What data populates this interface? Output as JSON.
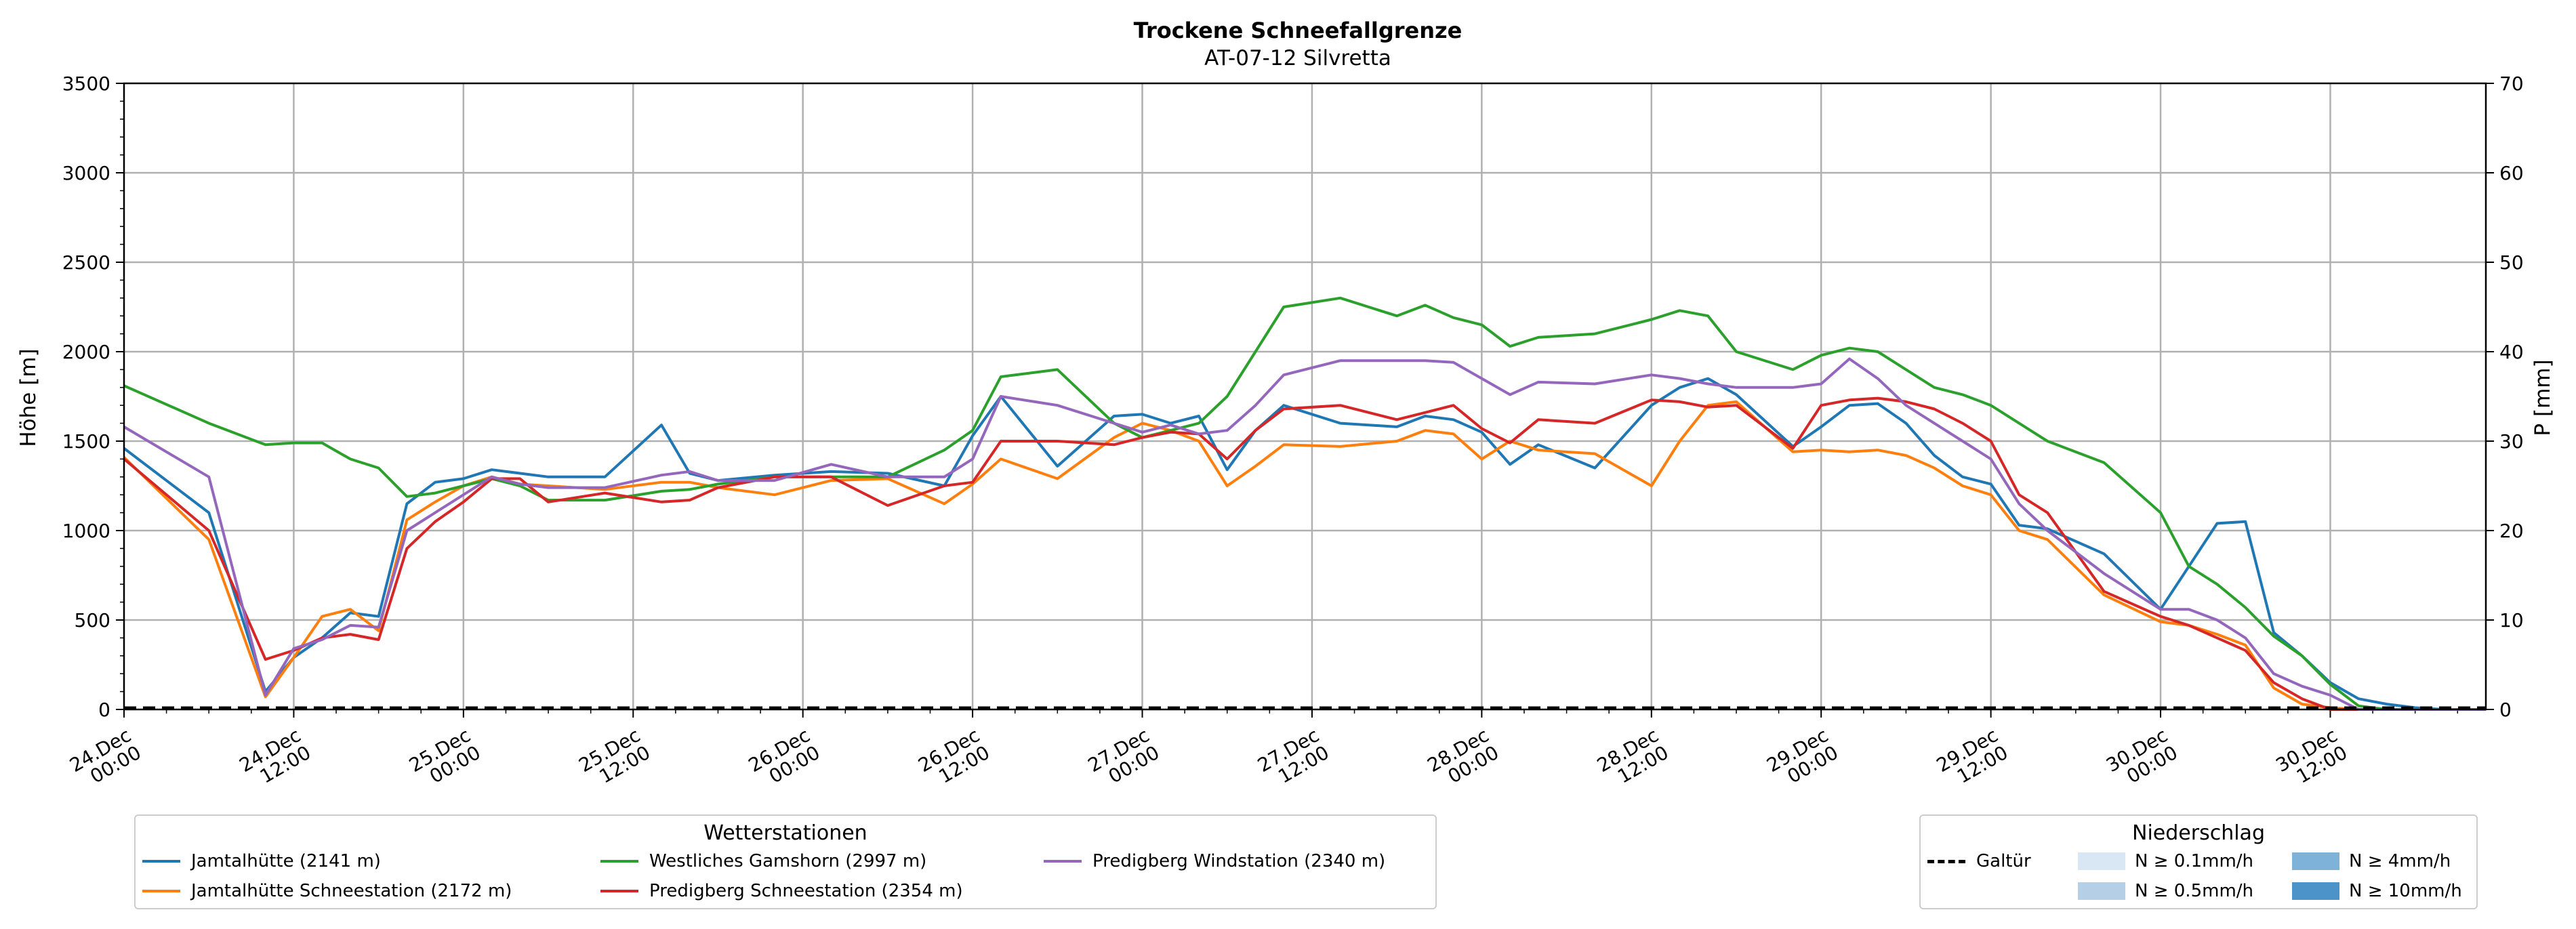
{
  "chart_data": {
    "type": "line",
    "title": "Trockene Schneefallgrenze",
    "subtitle": "AT-07-12 Silvretta",
    "ylabel": "Höhe [m]",
    "y2label": "P [mm]",
    "ylim": [
      0,
      3500
    ],
    "y2lim": [
      0,
      70
    ],
    "yticks": [
      "0",
      "500",
      "1000",
      "1500",
      "2000",
      "2500",
      "3000",
      "3500"
    ],
    "y2ticks": [
      "0",
      "10",
      "20",
      "30",
      "40",
      "50",
      "60",
      "70"
    ],
    "xlim_hours": [
      0,
      167
    ],
    "xticks": [
      [
        "24.Dec",
        "00:00"
      ],
      [
        "24.Dec",
        "12:00"
      ],
      [
        "25.Dec",
        "00:00"
      ],
      [
        "25.Dec",
        "12:00"
      ],
      [
        "26.Dec",
        "00:00"
      ],
      [
        "26.Dec",
        "12:00"
      ],
      [
        "27.Dec",
        "00:00"
      ],
      [
        "27.Dec",
        "12:00"
      ],
      [
        "28.Dec",
        "00:00"
      ],
      [
        "28.Dec",
        "12:00"
      ],
      [
        "29.Dec",
        "00:00"
      ],
      [
        "29.Dec",
        "12:00"
      ],
      [
        "30.Dec",
        "00:00"
      ],
      [
        "30.Dec",
        "12:00"
      ]
    ],
    "grid": true,
    "x_hours": [
      0,
      6,
      10,
      12,
      14,
      16,
      18,
      20,
      22,
      24,
      26,
      28,
      30,
      34,
      38,
      40,
      42,
      46,
      50,
      54,
      58,
      60,
      62,
      66,
      70,
      72,
      74,
      76,
      78,
      80,
      82,
      86,
      90,
      92,
      94,
      96,
      98,
      100,
      104,
      108,
      110,
      112,
      114,
      118,
      120,
      122,
      124,
      126,
      128,
      130,
      132,
      134,
      136,
      140,
      144,
      146,
      148,
      150,
      152,
      154,
      156,
      158,
      160,
      162,
      164,
      167
    ],
    "series": [
      {
        "name": "Jamtalhütte (2141 m)",
        "color": "#1f77b4",
        "values": [
          1460,
          1100,
          100,
          290,
          400,
          540,
          520,
          1150,
          1270,
          1290,
          1340,
          1320,
          1300,
          1300,
          1590,
          1320,
          1280,
          1310,
          1330,
          1320,
          1250,
          1530,
          1750,
          1360,
          1640,
          1650,
          1600,
          1640,
          1340,
          1560,
          1700,
          1600,
          1580,
          1640,
          1620,
          1550,
          1370,
          1480,
          1350,
          1700,
          1800,
          1850,
          1760,
          1470,
          1580,
          1700,
          1710,
          1600,
          1420,
          1300,
          1260,
          1030,
          1010,
          870,
          560,
          800,
          1040,
          1050,
          430,
          300,
          150,
          60,
          30,
          10,
          0,
          0
        ]
      },
      {
        "name": "Jamtalhütte Schneestation (2172 m)",
        "color": "#ff7f0e",
        "values": [
          1410,
          950,
          70,
          290,
          520,
          560,
          440,
          1060,
          1160,
          1250,
          1300,
          1260,
          1250,
          1230,
          1270,
          1270,
          1240,
          1200,
          1280,
          1290,
          1150,
          1260,
          1400,
          1290,
          1520,
          1600,
          1560,
          1500,
          1250,
          1360,
          1480,
          1470,
          1500,
          1560,
          1540,
          1400,
          1500,
          1450,
          1430,
          1250,
          1500,
          1700,
          1720,
          1440,
          1450,
          1440,
          1450,
          1420,
          1350,
          1250,
          1200,
          1000,
          950,
          640,
          490,
          470,
          420,
          360,
          120,
          30,
          10,
          0,
          0,
          0,
          0,
          0
        ]
      },
      {
        "name": "Westliches Gamshorn (2997 m)",
        "color": "#2ca02c",
        "values": [
          1810,
          1600,
          1480,
          1490,
          1490,
          1400,
          1350,
          1190,
          1210,
          1250,
          1290,
          1250,
          1170,
          1170,
          1220,
          1230,
          1260,
          1300,
          1300,
          1300,
          1450,
          1560,
          1860,
          1900,
          1600,
          1520,
          1560,
          1600,
          1750,
          2000,
          2250,
          2300,
          2200,
          2260,
          2190,
          2150,
          2030,
          2080,
          2100,
          2180,
          2230,
          2200,
          2000,
          1900,
          1980,
          2020,
          2000,
          1900,
          1800,
          1760,
          1700,
          1600,
          1500,
          1380,
          1100,
          800,
          700,
          570,
          410,
          300,
          140,
          20,
          0,
          0,
          0,
          0
        ]
      },
      {
        "name": "Predigberg Schneestation (2354 m)",
        "color": "#d62728",
        "values": [
          1400,
          1000,
          280,
          330,
          400,
          420,
          390,
          900,
          1050,
          1160,
          1290,
          1290,
          1160,
          1210,
          1160,
          1170,
          1240,
          1300,
          1300,
          1140,
          1250,
          1270,
          1500,
          1500,
          1480,
          1520,
          1550,
          1540,
          1400,
          1560,
          1680,
          1700,
          1620,
          1660,
          1700,
          1570,
          1490,
          1620,
          1600,
          1730,
          1720,
          1690,
          1700,
          1460,
          1700,
          1730,
          1740,
          1720,
          1680,
          1600,
          1500,
          1200,
          1100,
          660,
          520,
          470,
          400,
          330,
          150,
          60,
          0,
          0,
          0,
          0,
          0,
          0
        ]
      },
      {
        "name": "Predigberg Windstation (2340 m)",
        "color": "#9467bd",
        "values": [
          1580,
          1300,
          80,
          340,
          390,
          470,
          460,
          1000,
          1100,
          1200,
          1300,
          1260,
          1240,
          1240,
          1310,
          1330,
          1280,
          1280,
          1370,
          1300,
          1300,
          1400,
          1750,
          1700,
          1600,
          1550,
          1590,
          1540,
          1560,
          1700,
          1870,
          1950,
          1950,
          1950,
          1940,
          1850,
          1760,
          1830,
          1820,
          1870,
          1850,
          1820,
          1800,
          1800,
          1820,
          1960,
          1850,
          1700,
          1600,
          1500,
          1400,
          1150,
          1000,
          760,
          560,
          560,
          500,
          400,
          200,
          130,
          80,
          0,
          0,
          0,
          0,
          0
        ]
      }
    ]
  },
  "legend_stations": {
    "title": "Wetterstationen",
    "items": [
      {
        "label": "Jamtalhütte (2141 m)",
        "color": "#1f77b4"
      },
      {
        "label": "Jamtalhütte Schneestation (2172 m)",
        "color": "#ff7f0e"
      },
      {
        "label": "Westliches Gamshorn (2997 m)",
        "color": "#2ca02c"
      },
      {
        "label": "Predigberg Schneestation (2354 m)",
        "color": "#d62728"
      },
      {
        "label": "Predigberg Windstation (2340 m)",
        "color": "#9467bd"
      }
    ]
  },
  "legend_precip": {
    "title": "Niederschlag",
    "galtur_label": "Galtür",
    "items": [
      {
        "label": "N ≥ 0.1mm/h",
        "color": "#d9e7f4"
      },
      {
        "label": "N ≥ 0.5mm/h",
        "color": "#b5d0e6"
      },
      {
        "label": "N ≥ 4mm/h",
        "color": "#7fb2d8"
      },
      {
        "label": "N ≥ 10mm/h",
        "color": "#4b93c8"
      }
    ]
  }
}
